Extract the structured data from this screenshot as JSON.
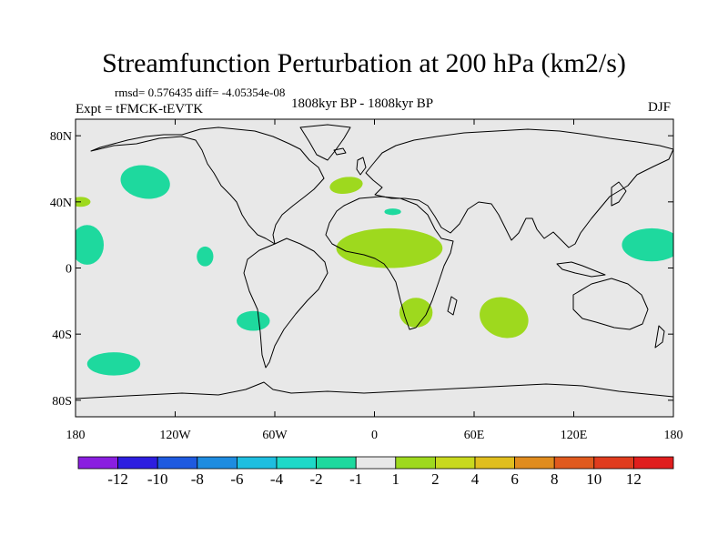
{
  "header": {
    "title": "Streamfunction Perturbation at 200 hPa (km2/s)",
    "stats": "rmsd= 0.576435 diff= -4.05354e-08",
    "experiment": "Expt = tFMCK-tEVTK",
    "period": "1808kyr BP - 1808kyr BP",
    "season": "DJF"
  },
  "map": {
    "projection": "cylindrical equidistant",
    "lon_range": [
      -180,
      180
    ],
    "lat_range": [
      -90,
      90
    ],
    "background_color": "#e8e8e8",
    "coastline_color": "#000000",
    "lat_ticks": [
      {
        "value": 80,
        "label": "80N"
      },
      {
        "value": 40,
        "label": "40N"
      },
      {
        "value": 0,
        "label": "0"
      },
      {
        "value": -40,
        "label": "40S"
      },
      {
        "value": -80,
        "label": "80S"
      }
    ],
    "lon_ticks": [
      {
        "value": -180,
        "label": "180"
      },
      {
        "value": -120,
        "label": "120W"
      },
      {
        "value": -60,
        "label": "60W"
      },
      {
        "value": 0,
        "label": "0"
      },
      {
        "value": 60,
        "label": "60E"
      },
      {
        "value": 120,
        "label": "120E"
      },
      {
        "value": 180,
        "label": "180"
      }
    ]
  },
  "chart_data": {
    "type": "heatmap",
    "title": "Streamfunction Perturbation at 200 hPa (km2/s)",
    "units": "km2/s",
    "blobs": [
      {
        "name": "north-pacific-negative",
        "lon": -138,
        "lat": 52,
        "rlon": 15,
        "rlat": 10,
        "rot": 10,
        "value": -2,
        "color": "#1ed99e"
      },
      {
        "name": "pacific-40n-positive",
        "lon": -177,
        "lat": 40,
        "rlon": 6,
        "rlat": 3,
        "rot": 0,
        "value": 2,
        "color": "#9ed91e"
      },
      {
        "name": "dateline-tropical-negative-west",
        "lon": -173,
        "lat": 14,
        "rlon": 10,
        "rlat": 12,
        "rot": 0,
        "value": -2,
        "color": "#1ed99e"
      },
      {
        "name": "dateline-tropical-negative-east",
        "lon": 167,
        "lat": 14,
        "rlon": 18,
        "rlat": 10,
        "rot": 0,
        "value": -2,
        "color": "#1ed99e"
      },
      {
        "name": "east-pacific-tropical-negative",
        "lon": -102,
        "lat": 7,
        "rlon": 5,
        "rlat": 6,
        "rot": 0,
        "value": -2,
        "color": "#1ed99e"
      },
      {
        "name": "south-america-negative",
        "lon": -73,
        "lat": -32,
        "rlon": 10,
        "rlat": 6,
        "rot": 0,
        "value": -2,
        "color": "#1ed99e"
      },
      {
        "name": "south-pacific-negative",
        "lon": -157,
        "lat": -58,
        "rlon": 16,
        "rlat": 7,
        "rot": 0,
        "value": -2,
        "color": "#1ed99e"
      },
      {
        "name": "north-atlantic-positive",
        "lon": -17,
        "lat": 50,
        "rlon": 10,
        "rlat": 5,
        "rot": -8,
        "value": 2,
        "color": "#9ed91e"
      },
      {
        "name": "mediterranean-negative",
        "lon": 11,
        "lat": 34,
        "rlon": 5,
        "rlat": 2,
        "rot": 0,
        "value": -2,
        "color": "#1ed99e"
      },
      {
        "name": "west-africa-positive",
        "lon": 9,
        "lat": 12,
        "rlon": 32,
        "rlat": 12,
        "rot": 0,
        "value": 2,
        "color": "#9ed91e"
      },
      {
        "name": "southern-africa-positive",
        "lon": 25,
        "lat": -27,
        "rlon": 10,
        "rlat": 9,
        "rot": 0,
        "value": 2,
        "color": "#9ed91e"
      },
      {
        "name": "indian-ocean-positive",
        "lon": 78,
        "lat": -30,
        "rlon": 15,
        "rlat": 12,
        "rot": 20,
        "value": 2,
        "color": "#9ed91e"
      }
    ]
  },
  "colorbar": {
    "colors": [
      "#8a1ee0",
      "#2d1ee0",
      "#1e5ae0",
      "#1e8ce0",
      "#1ebee0",
      "#1ed9c8",
      "#1ed99e",
      "#e8e8e8",
      "#9ed91e",
      "#c8d91e",
      "#e0be1e",
      "#e08c1e",
      "#e05a1e",
      "#e03c1e",
      "#e01e1e"
    ],
    "labels": [
      "-12",
      "-10",
      "-8",
      "-6",
      "-4",
      "-2",
      "-1",
      "1",
      "2",
      "4",
      "6",
      "8",
      "10",
      "12"
    ]
  }
}
